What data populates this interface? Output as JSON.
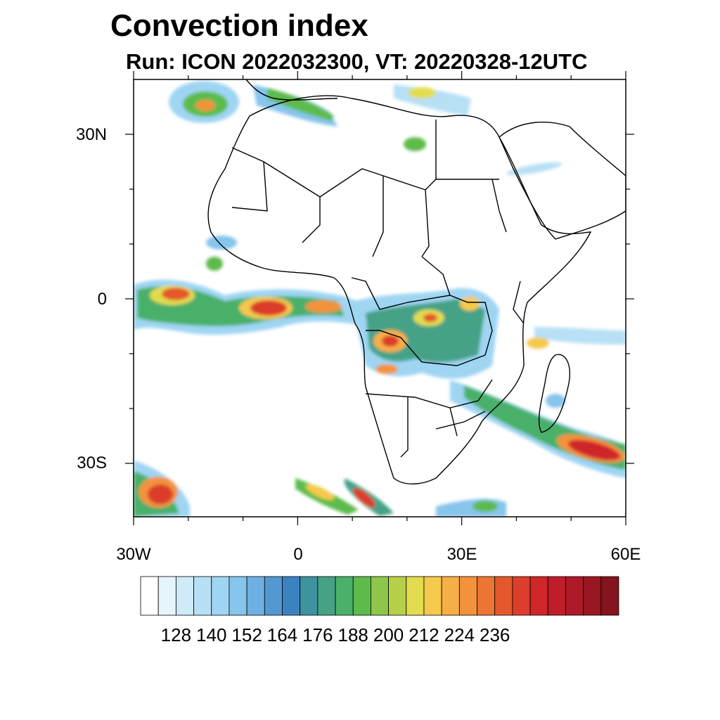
{
  "title": "Convection index",
  "subtitle": "Run: ICON 2022032300,  VT: 20220328-12UTC",
  "axes": {
    "lat_labels": [
      "30N",
      "0",
      "30S"
    ],
    "lon_labels": [
      "30W",
      "0",
      "30E",
      "60E"
    ],
    "lat_range": [
      -40,
      40
    ],
    "lon_range": [
      -30,
      60
    ]
  },
  "colorbar": {
    "labels": [
      "128",
      "140",
      "152",
      "164",
      "176",
      "188",
      "200",
      "212",
      "224",
      "236"
    ],
    "colors": [
      "#ffffff",
      "#e6f5fc",
      "#cfeaf8",
      "#b7e0f5",
      "#9fd5f3",
      "#86c5ec",
      "#6db0e3",
      "#5498d1",
      "#3b83c0",
      "#3f92a0",
      "#45a287",
      "#4ab06a",
      "#5dbb4c",
      "#8dc64a",
      "#b7d04a",
      "#e2dc4e",
      "#f5c94e",
      "#f6ae46",
      "#f3923c",
      "#ec7533",
      "#e4582c",
      "#db3e2a",
      "#cf2629",
      "#bf1d2a",
      "#ad1a28",
      "#991723",
      "#84141d"
    ]
  },
  "colors": {
    "coast": "#000000",
    "background": "#ffffff"
  }
}
